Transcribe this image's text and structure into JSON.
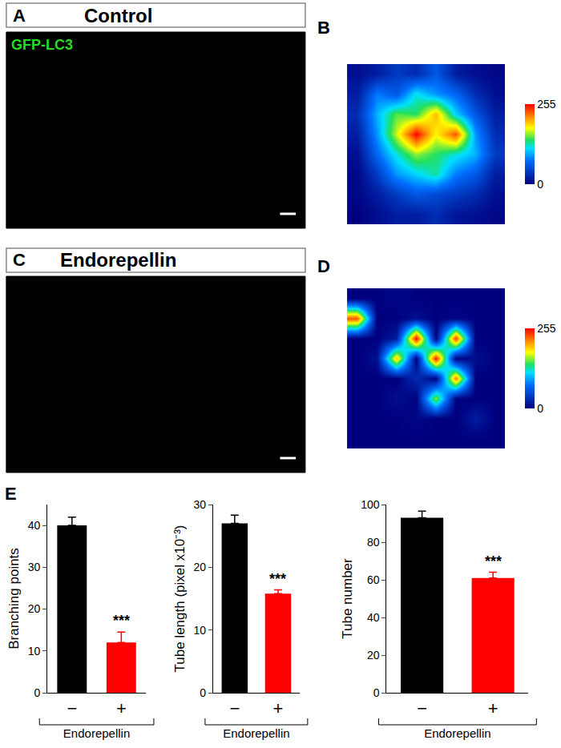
{
  "images": [
    {
      "panel": "A",
      "title": "Control",
      "channel": "GFP-LC3"
    },
    {
      "panel": "C",
      "title": "Endorepellin"
    }
  ],
  "chart_data": [
    {
      "type": "heatmap",
      "panel": "B",
      "tick_labels": false,
      "zlim": [
        0,
        255
      ],
      "zticks": [
        0,
        255
      ],
      "cells": [
        [
          10,
          20,
          40,
          30,
          60,
          20,
          10,
          5
        ],
        [
          20,
          80,
          60,
          120,
          90,
          70,
          30,
          10
        ],
        [
          30,
          100,
          150,
          140,
          200,
          110,
          60,
          20
        ],
        [
          20,
          90,
          170,
          255,
          180,
          230,
          90,
          30
        ],
        [
          10,
          70,
          120,
          160,
          140,
          120,
          100,
          40
        ],
        [
          5,
          40,
          90,
          110,
          130,
          80,
          60,
          20
        ],
        [
          5,
          20,
          40,
          60,
          50,
          40,
          30,
          10
        ],
        [
          0,
          10,
          20,
          20,
          30,
          15,
          10,
          5
        ]
      ]
    },
    {
      "type": "heatmap",
      "panel": "D",
      "tick_labels": false,
      "zlim": [
        0,
        255
      ],
      "zticks": [
        0,
        255
      ],
      "cells": [
        [
          0,
          0,
          5,
          0,
          0,
          0,
          0,
          0
        ],
        [
          230,
          0,
          0,
          10,
          0,
          5,
          0,
          0
        ],
        [
          0,
          0,
          20,
          255,
          0,
          240,
          0,
          0
        ],
        [
          0,
          10,
          200,
          0,
          250,
          0,
          10,
          0
        ],
        [
          0,
          0,
          0,
          30,
          0,
          220,
          0,
          0
        ],
        [
          0,
          0,
          10,
          0,
          160,
          0,
          0,
          0
        ],
        [
          0,
          0,
          0,
          5,
          0,
          0,
          20,
          0
        ],
        [
          0,
          0,
          0,
          0,
          0,
          0,
          0,
          0
        ]
      ]
    },
    {
      "type": "bar",
      "panel": "E",
      "ylabel": "Branching points",
      "xlabel": "Endorepellin",
      "categories": [
        "−",
        "+"
      ],
      "values": [
        40,
        12
      ],
      "errors": [
        2,
        2.5
      ],
      "colors": [
        "#000000",
        "#ff0000"
      ],
      "ylim": [
        0,
        45
      ],
      "yticks": [
        0,
        10,
        20,
        30,
        40
      ],
      "annotations": [
        {
          "category": "+",
          "text": "***"
        }
      ]
    },
    {
      "type": "bar",
      "ylabel": "Tube length (pixel x10⁻³)",
      "xlabel": "Endorepellin",
      "categories": [
        "−",
        "+"
      ],
      "values": [
        27,
        15.8
      ],
      "errors": [
        1.3,
        0.6
      ],
      "colors": [
        "#000000",
        "#ff0000"
      ],
      "ylim": [
        0,
        30
      ],
      "yticks": [
        0,
        10,
        20,
        30
      ],
      "annotations": [
        {
          "category": "+",
          "text": "***"
        }
      ]
    },
    {
      "type": "bar",
      "ylabel": "Tube number",
      "xlabel": "Endorepellin",
      "categories": [
        "−",
        "+"
      ],
      "values": [
        93,
        61
      ],
      "errors": [
        3.5,
        3
      ],
      "colors": [
        "#000000",
        "#ff0000"
      ],
      "ylim": [
        0,
        100
      ],
      "yticks": [
        0,
        20,
        40,
        60,
        80,
        100
      ],
      "annotations": [
        {
          "category": "+",
          "text": "***"
        }
      ]
    }
  ]
}
